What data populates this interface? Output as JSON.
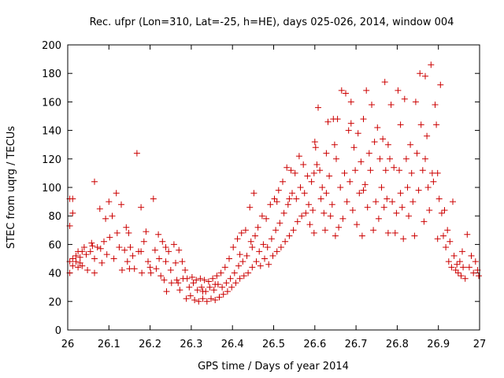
{
  "chart_data": {
    "type": "scatter",
    "title": "Rec. ufpr (Lon=310, Lat=-25, h=HE), days 025-026, 2014, window 004",
    "xlabel": "GPS time / Days of year 2014",
    "ylabel": "STEC from uqrg / TECUs",
    "xlim": [
      26,
      27
    ],
    "ylim": [
      0,
      200
    ],
    "xticks": [
      "26",
      "26.1",
      "26.2",
      "26.3",
      "26.4",
      "26.5",
      "26.6",
      "26.7",
      "26.8",
      "26.9",
      "27"
    ],
    "yticks": [
      "0",
      "20",
      "40",
      "60",
      "80",
      "100",
      "120",
      "140",
      "160",
      "180",
      "200"
    ],
    "grid": false,
    "marker": "plus",
    "color": "#cc0000",
    "series": [
      {
        "points": [
          [
            26.005,
            92
          ],
          [
            26.005,
            73
          ],
          [
            26.005,
            48
          ],
          [
            26.005,
            40
          ],
          [
            26.012,
            92
          ],
          [
            26.012,
            82
          ],
          [
            26.012,
            50
          ],
          [
            26.012,
            45
          ],
          [
            26.02,
            52
          ],
          [
            26.02,
            48
          ],
          [
            26.025,
            55
          ],
          [
            26.025,
            44
          ],
          [
            26.03,
            51
          ],
          [
            26.03,
            47
          ],
          [
            26.035,
            55
          ],
          [
            26.035,
            45
          ],
          [
            26.04,
            58
          ],
          [
            26.045,
            53
          ],
          [
            26.048,
            42
          ],
          [
            26.055,
            55
          ],
          [
            26.06,
            59
          ],
          [
            26.065,
            104
          ],
          [
            26.065,
            50
          ],
          [
            26.065,
            40
          ],
          [
            26.072,
            58
          ],
          [
            26.078,
            85
          ],
          [
            26.08,
            57
          ],
          [
            26.083,
            47
          ],
          [
            26.088,
            62
          ],
          [
            26.092,
            78
          ],
          [
            26.095,
            53
          ],
          [
            26.1,
            90
          ],
          [
            26.102,
            65
          ],
          [
            26.108,
            80
          ],
          [
            26.112,
            50
          ],
          [
            26.118,
            96
          ],
          [
            26.12,
            68
          ],
          [
            26.125,
            58
          ],
          [
            26.13,
            88
          ],
          [
            26.132,
            42
          ],
          [
            26.138,
            56
          ],
          [
            26.142,
            72
          ],
          [
            26.145,
            48
          ],
          [
            26.15,
            43
          ],
          [
            26.152,
            58
          ],
          [
            26.158,
            52
          ],
          [
            26.162,
            43
          ],
          [
            26.168,
            124
          ],
          [
            26.172,
            55
          ],
          [
            26.178,
            86
          ],
          [
            26.18,
            40
          ],
          [
            26.185,
            62
          ],
          [
            26.19,
            69
          ],
          [
            26.195,
            48
          ],
          [
            26.2,
            44
          ],
          [
            26.202,
            40
          ],
          [
            26.208,
            92
          ],
          [
            26.212,
            56
          ],
          [
            26.215,
            43
          ],
          [
            26.22,
            67
          ],
          [
            26.222,
            50
          ],
          [
            26.226,
            38
          ],
          [
            26.23,
            62
          ],
          [
            26.234,
            35
          ],
          [
            26.238,
            48
          ],
          [
            26.24,
            27
          ],
          [
            26.245,
            55
          ],
          [
            26.25,
            42
          ],
          [
            26.252,
            33
          ],
          [
            26.258,
            60
          ],
          [
            26.262,
            47
          ],
          [
            26.265,
            35
          ],
          [
            26.27,
            56
          ],
          [
            26.272,
            28
          ],
          [
            26.278,
            48
          ],
          [
            26.28,
            36
          ],
          [
            26.285,
            42
          ],
          [
            26.288,
            22
          ],
          [
            26.29,
            36
          ],
          [
            26.295,
            30
          ],
          [
            26.298,
            24
          ],
          [
            26.302,
            37
          ],
          [
            26.305,
            33
          ],
          [
            26.308,
            21
          ],
          [
            26.312,
            35
          ],
          [
            26.315,
            28
          ],
          [
            26.318,
            20
          ],
          [
            26.322,
            36
          ],
          [
            26.325,
            30
          ],
          [
            26.328,
            22
          ],
          [
            26.332,
            35
          ],
          [
            26.335,
            27
          ],
          [
            26.338,
            20
          ],
          [
            26.342,
            34
          ],
          [
            26.345,
            30
          ],
          [
            26.348,
            22
          ],
          [
            26.352,
            36
          ],
          [
            26.355,
            28
          ],
          [
            26.358,
            21
          ],
          [
            26.362,
            38
          ],
          [
            26.365,
            32
          ],
          [
            26.368,
            23
          ],
          [
            26.372,
            40
          ],
          [
            26.375,
            30
          ],
          [
            26.378,
            25
          ],
          [
            26.382,
            44
          ],
          [
            26.385,
            33
          ],
          [
            26.388,
            27
          ],
          [
            26.392,
            50
          ],
          [
            26.395,
            36
          ],
          [
            26.398,
            30
          ],
          [
            26.402,
            58
          ],
          [
            26.405,
            40
          ],
          [
            26.408,
            33
          ],
          [
            26.412,
            64
          ],
          [
            26.415,
            45
          ],
          [
            26.418,
            36
          ],
          [
            26.422,
            68
          ],
          [
            26.425,
            48
          ],
          [
            26.428,
            38
          ],
          [
            26.432,
            70
          ],
          [
            26.435,
            52
          ],
          [
            26.438,
            40
          ],
          [
            26.442,
            86
          ],
          [
            26.445,
            62
          ],
          [
            26.448,
            44
          ],
          [
            26.452,
            96
          ],
          [
            26.455,
            66
          ],
          [
            26.458,
            48
          ],
          [
            26.462,
            72
          ],
          [
            26.465,
            55
          ],
          [
            26.468,
            45
          ],
          [
            26.472,
            80
          ],
          [
            26.475,
            60
          ],
          [
            26.478,
            50
          ],
          [
            26.482,
            78
          ],
          [
            26.485,
            58
          ],
          [
            26.488,
            46
          ],
          [
            26.492,
            88
          ],
          [
            26.495,
            64
          ],
          [
            26.498,
            52
          ],
          [
            26.502,
            92
          ],
          [
            26.505,
            70
          ],
          [
            26.508,
            55
          ],
          [
            26.512,
            98
          ],
          [
            26.515,
            75
          ],
          [
            26.518,
            58
          ],
          [
            26.522,
            104
          ],
          [
            26.525,
            82
          ],
          [
            26.528,
            62
          ],
          [
            26.532,
            114
          ],
          [
            26.535,
            88
          ],
          [
            26.538,
            66
          ],
          [
            26.542,
            112
          ],
          [
            26.545,
            96
          ],
          [
            26.548,
            70
          ],
          [
            26.552,
            110
          ],
          [
            26.555,
            92
          ],
          [
            26.558,
            76
          ],
          [
            26.562,
            122
          ],
          [
            26.565,
            100
          ],
          [
            26.568,
            80
          ],
          [
            26.572,
            116
          ],
          [
            26.575,
            96
          ],
          [
            26.578,
            82
          ],
          [
            26.582,
            108
          ],
          [
            26.585,
            88
          ],
          [
            26.588,
            74
          ],
          [
            26.592,
            104
          ],
          [
            26.595,
            84
          ],
          [
            26.598,
            68
          ],
          [
            26.6,
            132
          ],
          [
            26.602,
            128
          ],
          [
            26.605,
            116
          ],
          [
            26.608,
            156
          ],
          [
            26.612,
            112
          ],
          [
            26.615,
            92
          ],
          [
            26.618,
            100
          ],
          [
            26.622,
            82
          ],
          [
            26.625,
            70
          ],
          [
            26.628,
            96
          ],
          [
            26.632,
            146
          ],
          [
            26.635,
            108
          ],
          [
            26.638,
            80
          ],
          [
            26.642,
            88
          ],
          [
            26.645,
            148
          ],
          [
            26.648,
            130
          ],
          [
            26.65,
            66
          ],
          [
            26.652,
            120
          ],
          [
            26.655,
            148
          ],
          [
            26.658,
            72
          ],
          [
            26.662,
            100
          ],
          [
            26.665,
            168
          ],
          [
            26.668,
            78
          ],
          [
            26.672,
            110
          ],
          [
            26.675,
            166
          ],
          [
            26.678,
            90
          ],
          [
            26.682,
            140
          ],
          [
            26.685,
            104
          ],
          [
            26.688,
            160
          ],
          [
            26.692,
            84
          ],
          [
            26.695,
            128
          ],
          [
            26.698,
            112
          ],
          [
            26.702,
            74
          ],
          [
            26.705,
            138
          ],
          [
            26.708,
            96
          ],
          [
            26.712,
            118
          ],
          [
            26.715,
            66
          ],
          [
            26.718,
            148
          ],
          [
            26.722,
            102
          ],
          [
            26.725,
            168
          ],
          [
            26.728,
            86
          ],
          [
            26.732,
            124
          ],
          [
            26.735,
            112
          ],
          [
            26.738,
            158
          ],
          [
            26.742,
            70
          ],
          [
            26.745,
            132
          ],
          [
            26.748,
            90
          ],
          [
            26.752,
            142
          ],
          [
            26.755,
            78
          ],
          [
            26.758,
            120
          ],
          [
            26.762,
            100
          ],
          [
            26.765,
            134
          ],
          [
            26.768,
            86
          ],
          [
            26.77,
            174
          ],
          [
            26.772,
            112
          ],
          [
            26.775,
            92
          ],
          [
            26.778,
            68
          ],
          [
            26.782,
            120
          ],
          [
            26.785,
            158
          ],
          [
            26.788,
            90
          ],
          [
            26.792,
            114
          ],
          [
            26.795,
            68
          ],
          [
            26.798,
            82
          ],
          [
            26.802,
            168
          ],
          [
            26.805,
            112
          ],
          [
            26.808,
            96
          ],
          [
            26.812,
            86
          ],
          [
            26.815,
            64
          ],
          [
            26.818,
            162
          ],
          [
            26.822,
            120
          ],
          [
            26.825,
            100
          ],
          [
            26.828,
            80
          ],
          [
            26.832,
            130
          ],
          [
            26.835,
            110
          ],
          [
            26.838,
            90
          ],
          [
            26.842,
            66
          ],
          [
            26.845,
            160
          ],
          [
            26.848,
            124
          ],
          [
            26.852,
            98
          ],
          [
            26.855,
            180
          ],
          [
            26.858,
            144
          ],
          [
            26.862,
            112
          ],
          [
            26.865,
            76
          ],
          [
            26.868,
            178
          ],
          [
            26.872,
            136
          ],
          [
            26.875,
            100
          ],
          [
            26.878,
            84
          ],
          [
            26.882,
            186
          ],
          [
            26.885,
            110
          ],
          [
            26.888,
            104
          ],
          [
            26.892,
            158
          ],
          [
            26.895,
            144
          ],
          [
            26.898,
            110
          ],
          [
            26.902,
            92
          ],
          [
            26.905,
            172
          ],
          [
            26.908,
            82
          ],
          [
            26.912,
            66
          ],
          [
            26.915,
            84
          ],
          [
            26.918,
            58
          ],
          [
            26.922,
            70
          ],
          [
            26.925,
            48
          ],
          [
            26.928,
            62
          ],
          [
            26.932,
            44
          ],
          [
            26.935,
            90
          ],
          [
            26.938,
            52
          ],
          [
            26.942,
            42
          ],
          [
            26.945,
            46
          ],
          [
            26.948,
            40
          ],
          [
            26.952,
            48
          ],
          [
            26.955,
            38
          ],
          [
            26.96,
            44
          ],
          [
            26.965,
            36
          ],
          [
            26.97,
            67
          ],
          [
            26.975,
            44
          ],
          [
            26.98,
            52
          ],
          [
            26.985,
            40
          ],
          [
            26.99,
            48
          ],
          [
            26.995,
            42
          ],
          [
            26.998,
            38
          ],
          [
            26.058,
            61
          ],
          [
            26.148,
            68
          ],
          [
            26.238,
            58
          ],
          [
            26.328,
            27
          ],
          [
            26.418,
            53
          ],
          [
            26.508,
            90
          ],
          [
            26.598,
            110
          ],
          [
            26.688,
            145
          ],
          [
            26.778,
            130
          ],
          [
            26.868,
            120
          ],
          [
            26.958,
            55
          ],
          [
            26.178,
            55
          ],
          [
            26.268,
            33
          ],
          [
            26.358,
            32
          ],
          [
            26.448,
            58
          ],
          [
            26.538,
            92
          ],
          [
            26.628,
            124
          ],
          [
            26.718,
            98
          ],
          [
            26.808,
            144
          ],
          [
            26.898,
            64
          ]
        ]
      }
    ]
  }
}
